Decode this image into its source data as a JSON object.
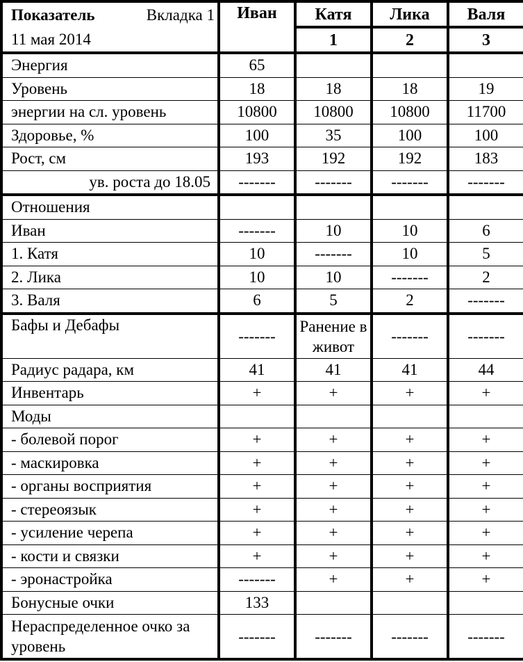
{
  "header": {
    "title": "Показатель",
    "tab": "Вкладка 1",
    "date": "11 мая 2014",
    "columns": [
      {
        "name": "Иван",
        "number": ""
      },
      {
        "name": "Катя",
        "number": "1"
      },
      {
        "name": "Лика",
        "number": "2"
      },
      {
        "name": "Валя",
        "number": "3"
      }
    ]
  },
  "rows": [
    {
      "label": "Энергия",
      "values": [
        "65",
        "",
        "",
        ""
      ]
    },
    {
      "label": "Уровень",
      "values": [
        "18",
        "18",
        "18",
        "19"
      ]
    },
    {
      "label": "энергии на сл. уровень",
      "values": [
        "10800",
        "10800",
        "10800",
        "11700"
      ]
    },
    {
      "label": "Здоровье, %",
      "values": [
        "100",
        "35",
        "100",
        "100"
      ]
    },
    {
      "label": "Рост, см",
      "values": [
        "193",
        "192",
        "192",
        "183"
      ]
    },
    {
      "label": "ув. роста до 18.05",
      "values": [
        "-------",
        "-------",
        "-------",
        "-------"
      ]
    },
    {
      "label": "Отношения",
      "values": [
        "",
        "",
        "",
        ""
      ]
    },
    {
      "label": "Иван",
      "values": [
        "-------",
        "10",
        "10",
        "6"
      ]
    },
    {
      "label": "1. Катя",
      "values": [
        "10",
        "-------",
        "10",
        "5"
      ]
    },
    {
      "label": "2. Лика",
      "values": [
        "10",
        "10",
        "-------",
        "2"
      ]
    },
    {
      "label": "3. Валя",
      "values": [
        "6",
        "5",
        "2",
        "-------"
      ]
    },
    {
      "label": "Бафы и Дебафы",
      "values": [
        "-------",
        "Ранение в живот",
        "-------",
        "-------"
      ]
    },
    {
      "label": "Радиус радара, км",
      "values": [
        "41",
        "41",
        "41",
        "44"
      ]
    },
    {
      "label": "Инвентарь",
      "values": [
        "+",
        "+",
        "+",
        "+"
      ]
    },
    {
      "label": "Моды",
      "values": [
        "",
        "",
        "",
        ""
      ]
    },
    {
      "label": "- болевой порог",
      "values": [
        "+",
        "+",
        "+",
        "+"
      ]
    },
    {
      "label": "- маскировка",
      "values": [
        "+",
        "+",
        "+",
        "+"
      ]
    },
    {
      "label": "- органы восприятия",
      "values": [
        "+",
        "+",
        "+",
        "+"
      ]
    },
    {
      "label": "- стереоязык",
      "values": [
        "+",
        "+",
        "+",
        "+"
      ]
    },
    {
      "label": "- усиление черепа",
      "values": [
        "+",
        "+",
        "+",
        "+"
      ]
    },
    {
      "label": "- кости и связки",
      "values": [
        "+",
        "+",
        "+",
        "+"
      ]
    },
    {
      "label": "- эронастройка",
      "values": [
        "-------",
        "+",
        "+",
        "+"
      ]
    },
    {
      "label": "Бонусные очки",
      "values": [
        "133",
        "",
        "",
        ""
      ]
    },
    {
      "label": "Нераспределенное очко за уровень",
      "values": [
        "-------",
        "-------",
        "-------",
        "-------"
      ]
    }
  ]
}
